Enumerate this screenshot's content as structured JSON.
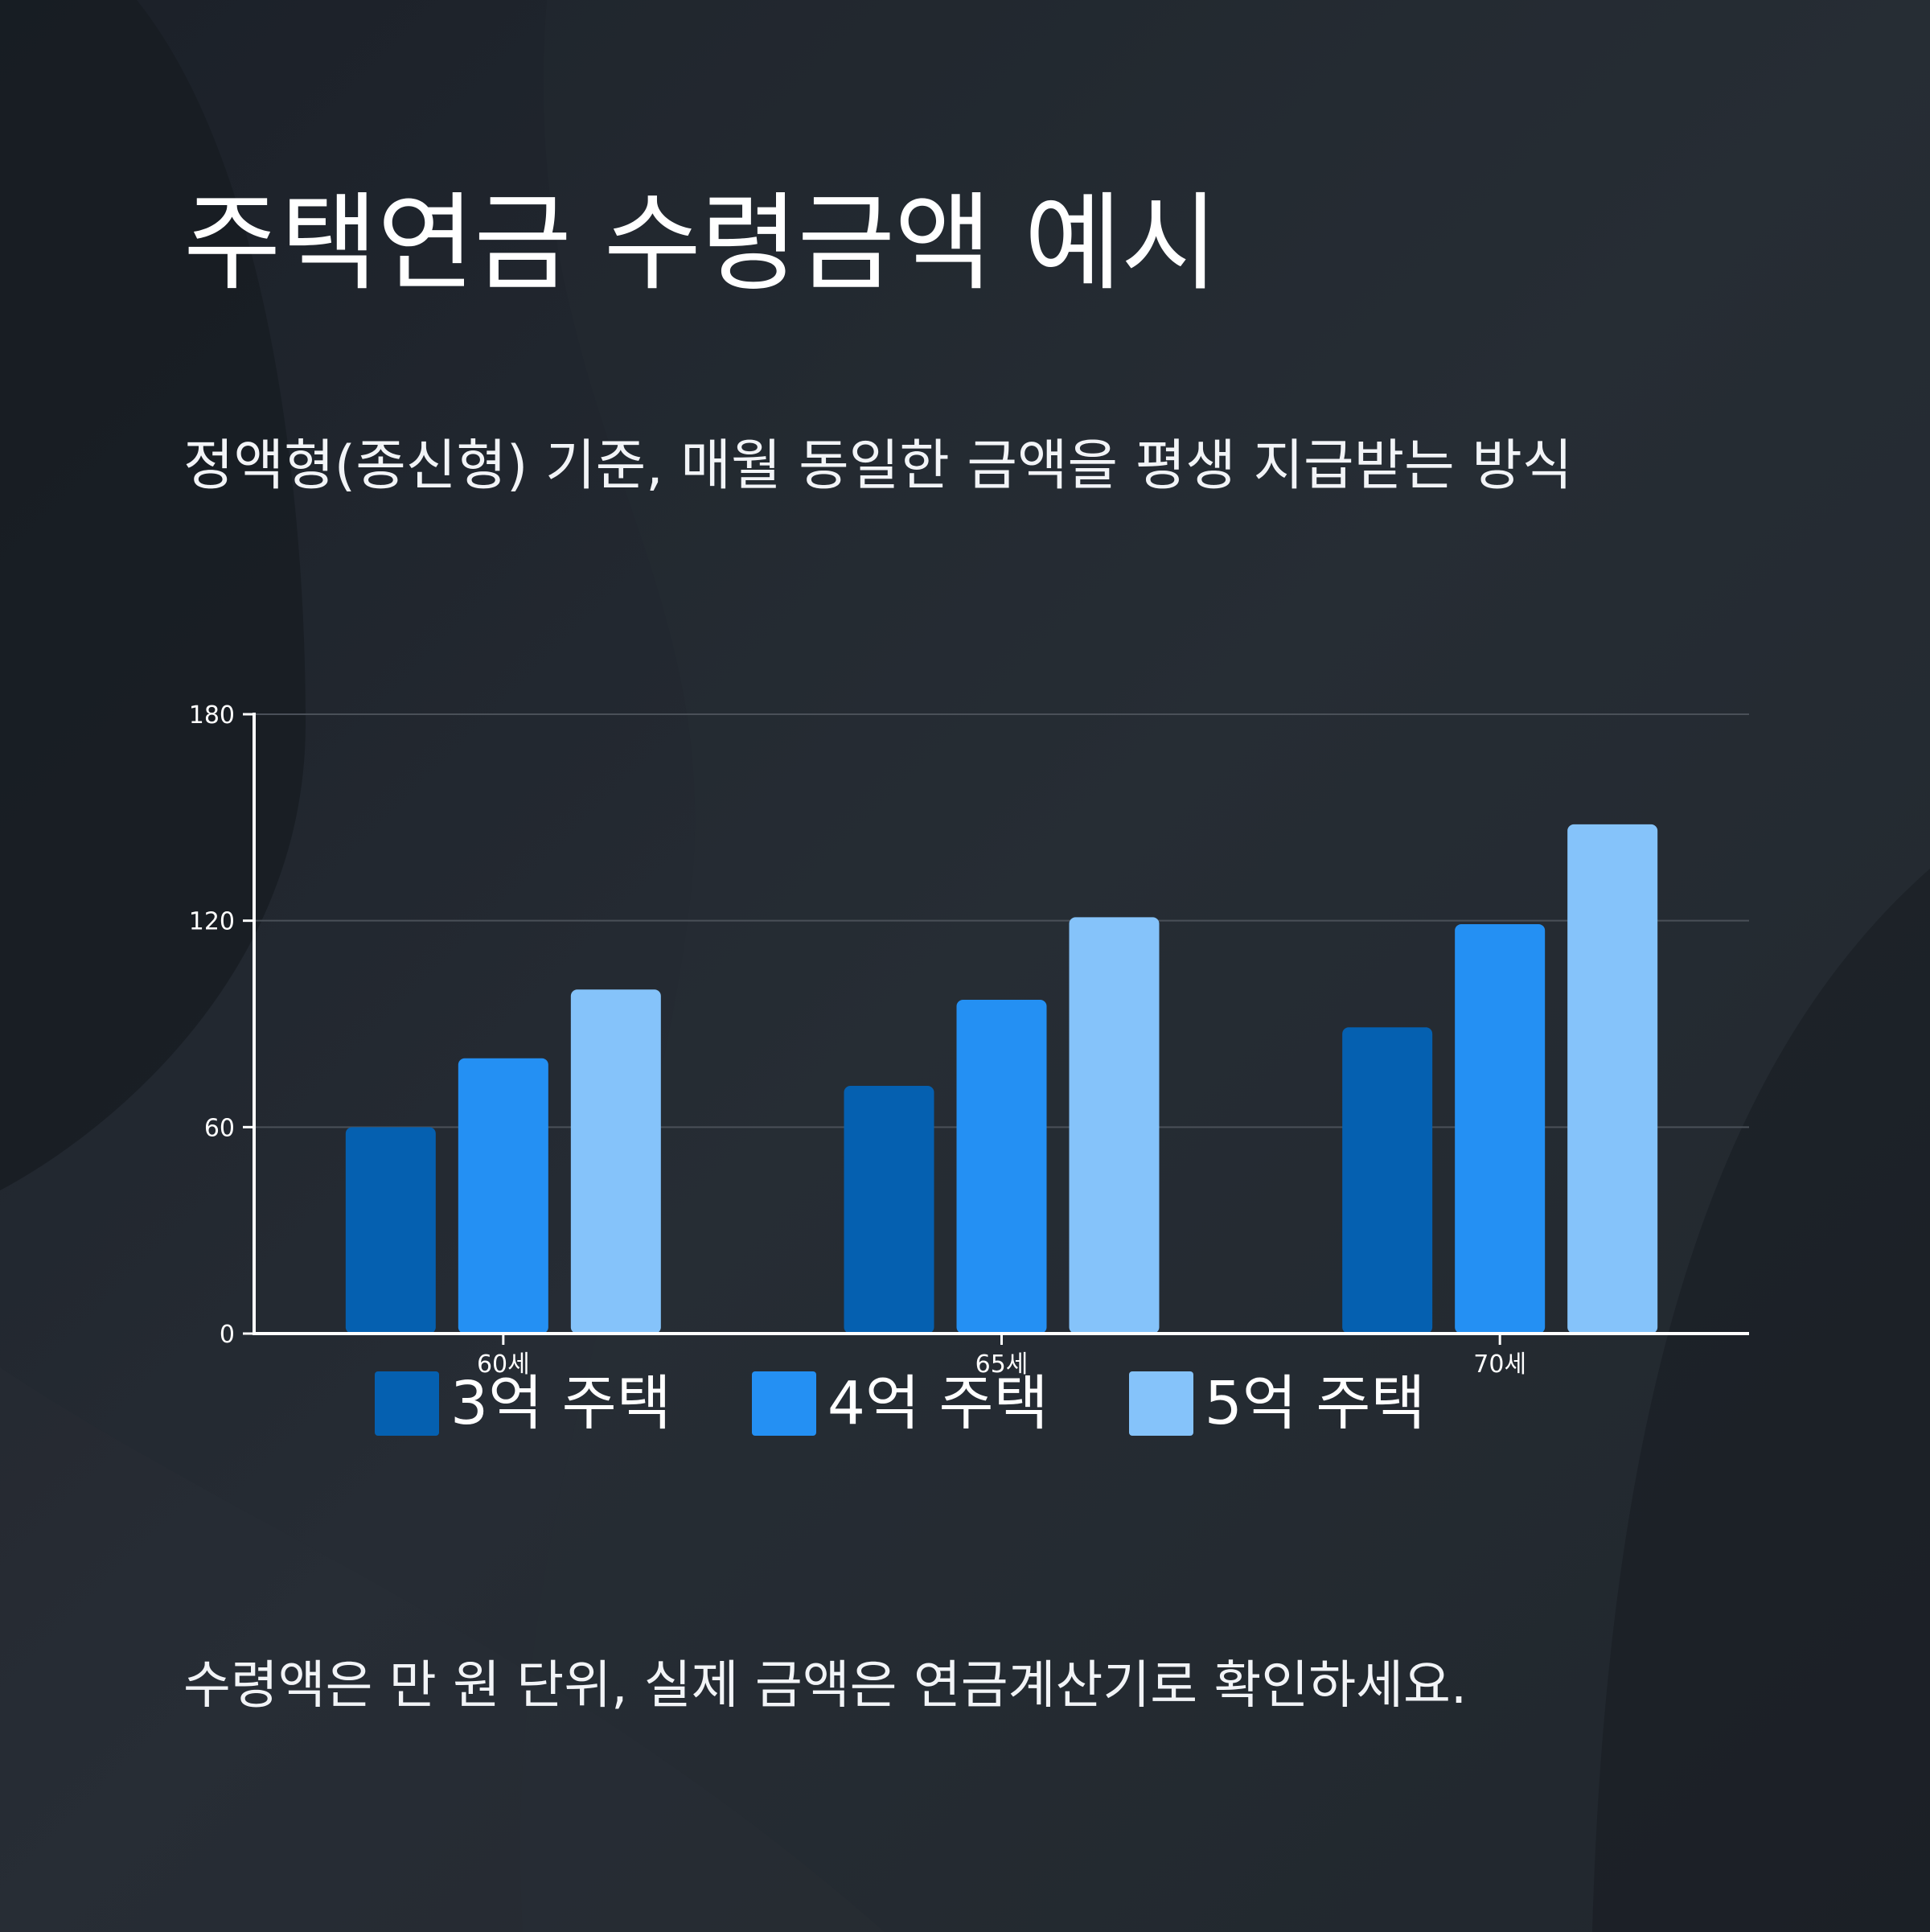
{
  "header": {
    "title": "주택연금 수령금액 예시",
    "subtitle": "정액형(종신형) 기준, 매월 동일한 금액을 평생 지급받는 방식"
  },
  "footer": {
    "note": "수령액은 만 원 단위, 실제 금액은 연금계산기로 확인하세요."
  },
  "colors": {
    "background": "#23282f",
    "grid": "#4a5058",
    "axis": "#ffffff"
  },
  "chart_data": {
    "type": "bar",
    "categories": [
      "60세",
      "65세",
      "70세"
    ],
    "series": [
      {
        "name": "3억 주택",
        "color": "#0560b0",
        "values": [
          60,
          72,
          89
        ]
      },
      {
        "name": "4억 주택",
        "color": "#2490f3",
        "values": [
          80,
          97,
          119
        ]
      },
      {
        "name": "5억 주택",
        "color": "#85c3fa",
        "values": [
          100,
          121,
          148
        ]
      }
    ],
    "ylim": [
      0,
      180
    ],
    "yticks": [
      0,
      60,
      120,
      180
    ],
    "grid": true,
    "legend_position": "bottom"
  }
}
